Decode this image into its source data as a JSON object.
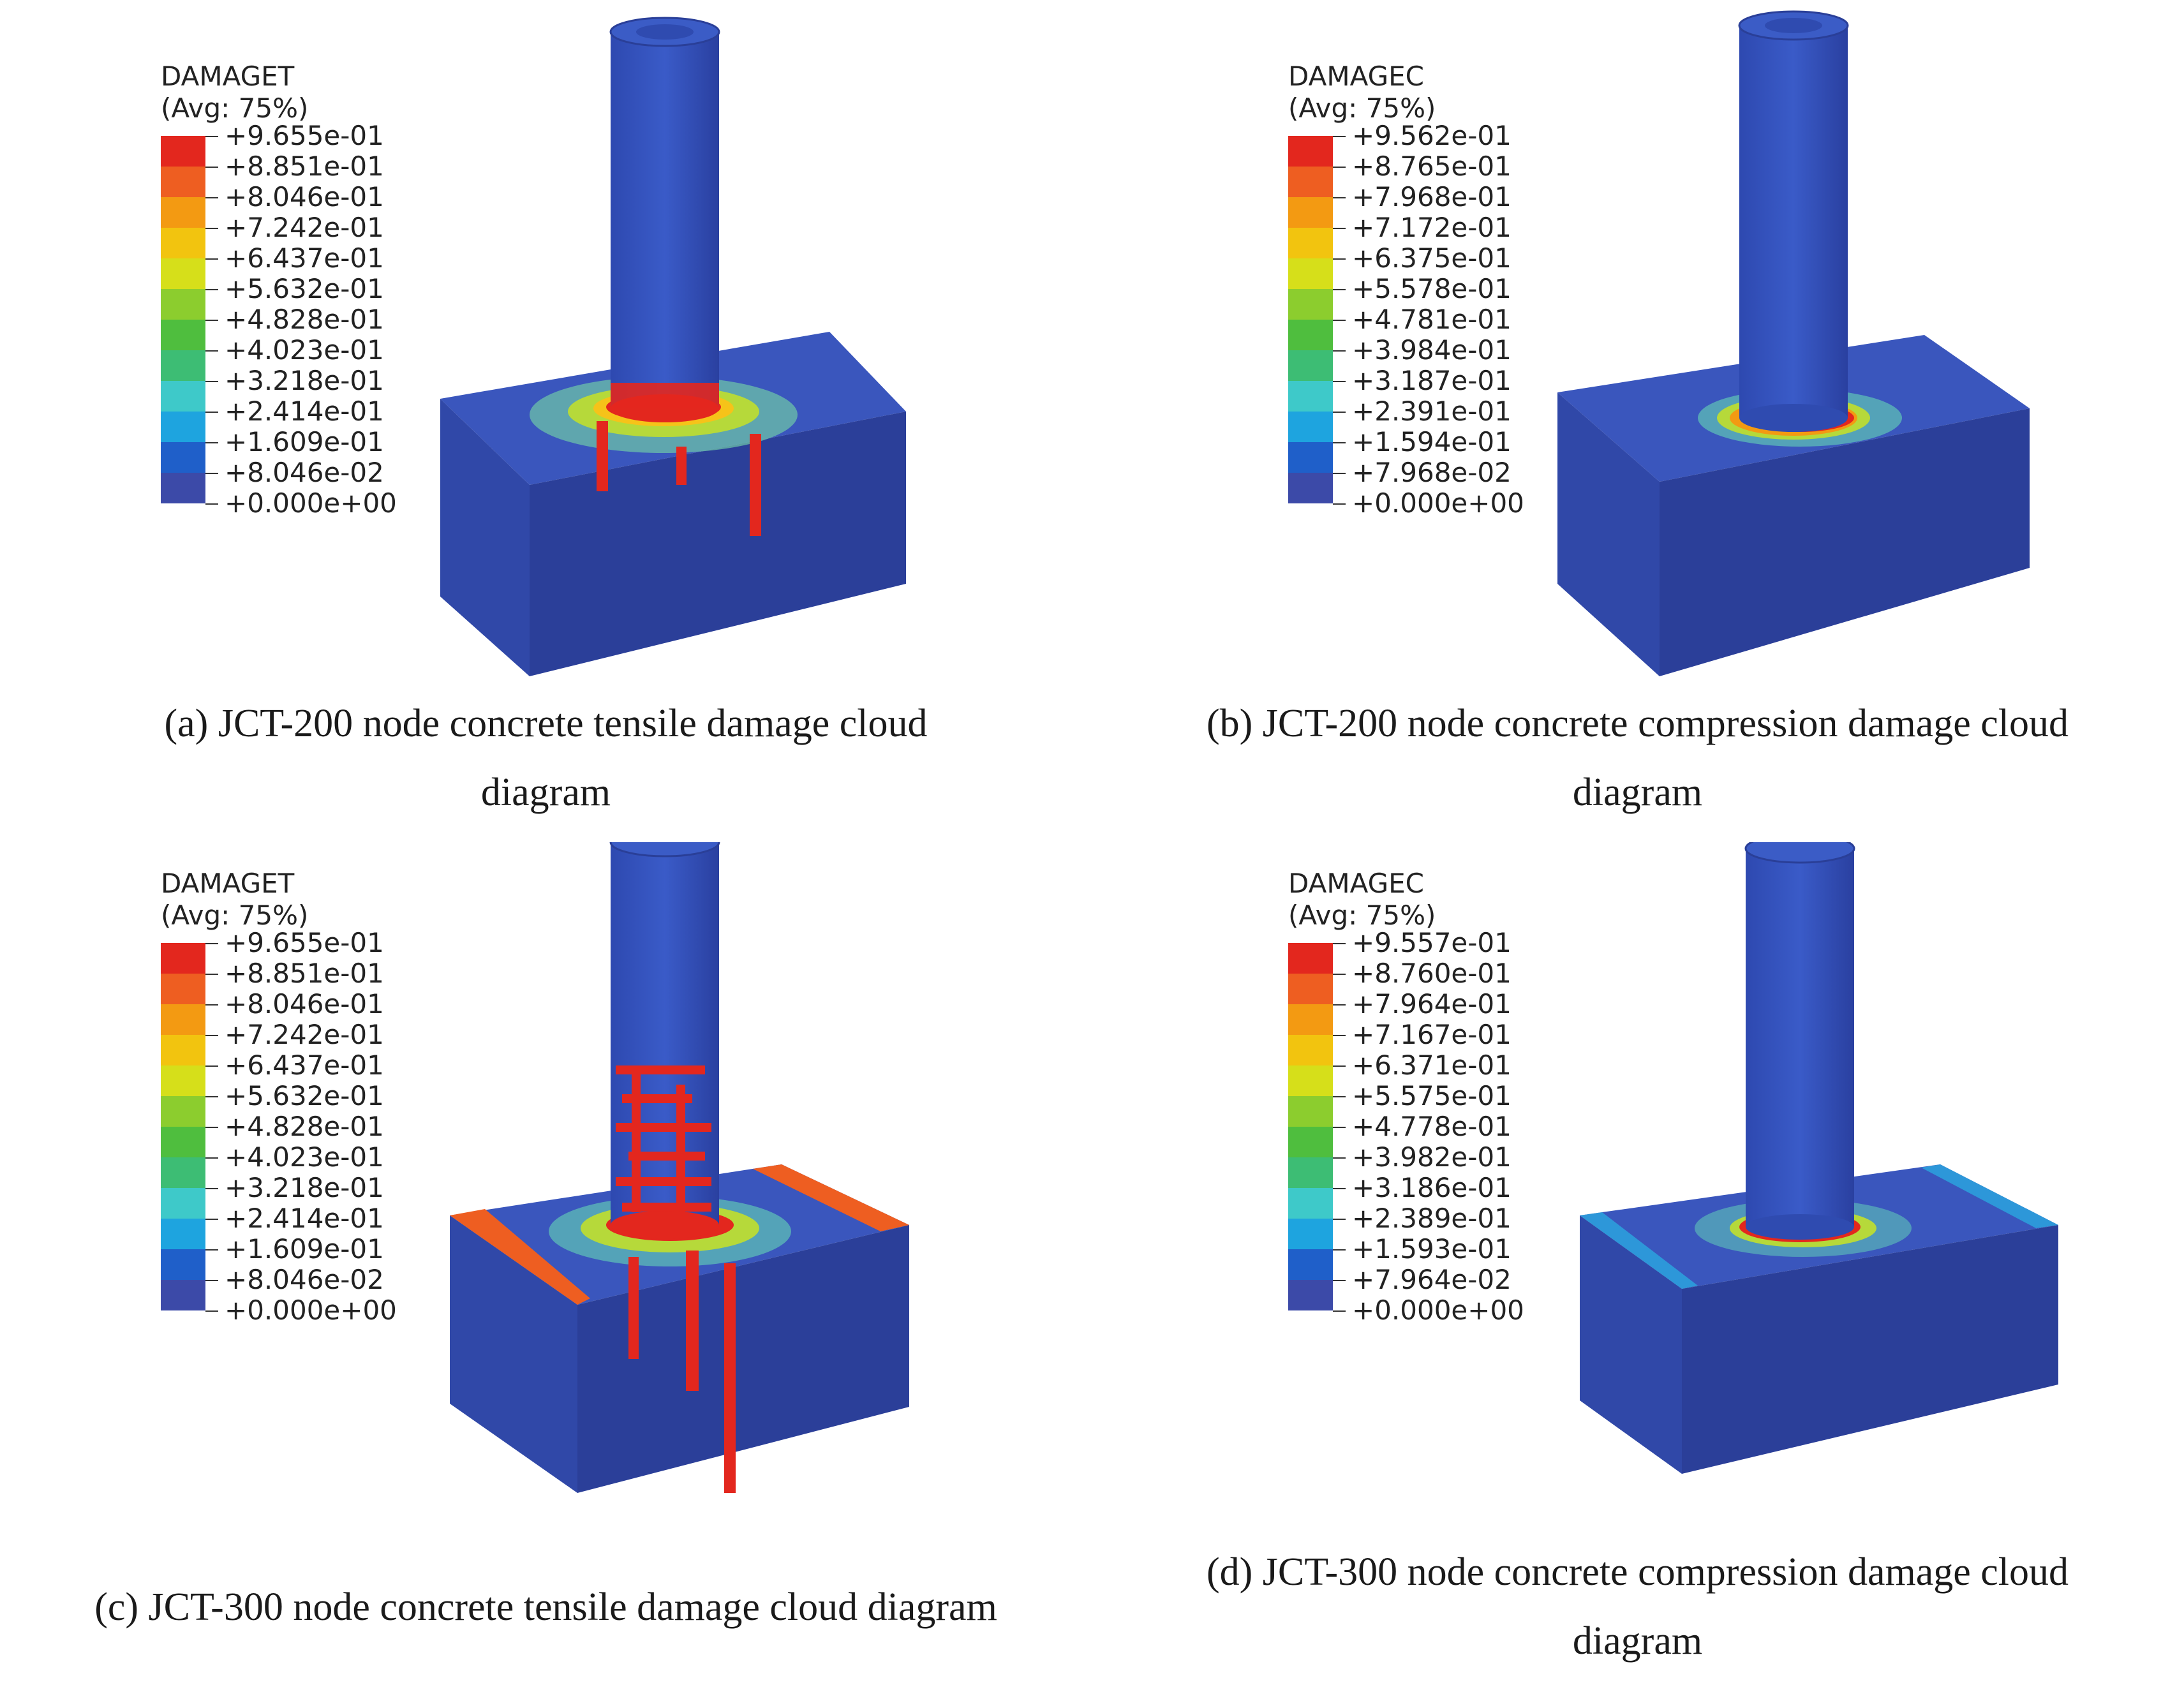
{
  "legend_colors": [
    "#3c4aa8",
    "#1f5fc9",
    "#1ea4df",
    "#3ec9c9",
    "#3dbd74",
    "#4fbe3e",
    "#8ccd2e",
    "#d6df1a",
    "#f2c40f",
    "#f39a12",
    "#ee5e21",
    "#e3271e"
  ],
  "panels": [
    {
      "id": "a",
      "legend_title": "DAMAGET",
      "legend_avg": "(Avg: 75%)",
      "legend_values": [
        "+9.655e-01",
        "+8.851e-01",
        "+8.046e-01",
        "+7.242e-01",
        "+6.437e-01",
        "+5.632e-01",
        "+4.828e-01",
        "+4.023e-01",
        "+3.218e-01",
        "+2.414e-01",
        "+1.609e-01",
        "+8.046e-02",
        "+0.000e+00"
      ],
      "caption_line1": "(a) JCT-200 node concrete tensile damage cloud",
      "caption_line2": "diagram"
    },
    {
      "id": "b",
      "legend_title": "DAMAGEC",
      "legend_avg": "(Avg: 75%)",
      "legend_values": [
        "+9.562e-01",
        "+8.765e-01",
        "+7.968e-01",
        "+7.172e-01",
        "+6.375e-01",
        "+5.578e-01",
        "+4.781e-01",
        "+3.984e-01",
        "+3.187e-01",
        "+2.391e-01",
        "+1.594e-01",
        "+7.968e-02",
        "+0.000e+00"
      ],
      "caption_line1": "(b) JCT-200 node concrete compression damage cloud",
      "caption_line2": "diagram"
    },
    {
      "id": "c",
      "legend_title": "DAMAGET",
      "legend_avg": "(Avg: 75%)",
      "legend_values": [
        "+9.655e-01",
        "+8.851e-01",
        "+8.046e-01",
        "+7.242e-01",
        "+6.437e-01",
        "+5.632e-01",
        "+4.828e-01",
        "+4.023e-01",
        "+3.218e-01",
        "+2.414e-01",
        "+1.609e-01",
        "+8.046e-02",
        "+0.000e+00"
      ],
      "caption_line1": "(c) JCT-300 node concrete tensile damage cloud diagram",
      "caption_line2": ""
    },
    {
      "id": "d",
      "legend_title": "DAMAGEC",
      "legend_avg": "(Avg: 75%)",
      "legend_values": [
        "+9.557e-01",
        "+8.760e-01",
        "+7.964e-01",
        "+7.167e-01",
        "+6.371e-01",
        "+5.575e-01",
        "+4.778e-01",
        "+3.982e-01",
        "+3.186e-01",
        "+2.389e-01",
        "+1.593e-01",
        "+7.964e-02",
        "+0.000e+00"
      ],
      "caption_line1": "(d) JCT-300 node concrete compression damage cloud",
      "caption_line2": "diagram"
    }
  ]
}
